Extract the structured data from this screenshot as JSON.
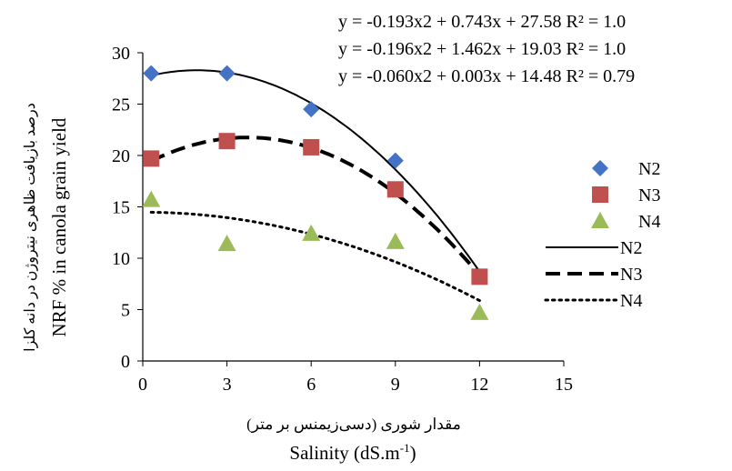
{
  "chart_data": {
    "type": "scatter",
    "xlabel_fa": "مقدار شوری (دسی‌زیمنس بر متر)",
    "xlabel_en": "Salinity (dS.m",
    "xlabel_en_sup": "-1",
    "xlabel_en_end": ")",
    "ylabel_fa": "درصد بازیافت ظاهری نیتروژن در دانه کلزا",
    "ylabel_en": "NRF % in canola grain yield",
    "xlim": [
      0,
      15
    ],
    "ylim": [
      0,
      30
    ],
    "x_ticks": [
      "0",
      "3",
      "6",
      "9",
      "12",
      "15"
    ],
    "y_ticks": [
      "0",
      "5",
      "10",
      "15",
      "20",
      "25",
      "30"
    ],
    "grid": false,
    "legend_position": "right",
    "equations": [
      "y = -0.193x2 + 0.743x + 27.58  R² = 1.0",
      "y = -0.196x2 + 1.462x + 19.03  R² = 1.0",
      "y = -0.060x2 + 0.003x + 14.48  R² = 0.79"
    ],
    "series": [
      {
        "name": "N2",
        "marker": "diamond",
        "color": "#4472C4",
        "x": [
          0.3,
          3,
          6,
          9,
          12
        ],
        "y": [
          28.0,
          28.0,
          24.5,
          19.5,
          8.2
        ]
      },
      {
        "name": "N3",
        "marker": "square",
        "color": "#C0504D",
        "x": [
          0.3,
          3,
          6,
          9,
          12
        ],
        "y": [
          19.7,
          21.4,
          20.8,
          16.7,
          8.2
        ]
      },
      {
        "name": "N4",
        "marker": "triangle",
        "color": "#9BBB59",
        "x": [
          0.3,
          3,
          6,
          9,
          12
        ],
        "y": [
          15.7,
          11.4,
          12.4,
          11.6,
          4.7
        ]
      }
    ],
    "trendlines": [
      {
        "name": "N2",
        "style": "solid",
        "color": "#000000",
        "a": -0.193,
        "b": 0.743,
        "c": 27.58,
        "x_range": [
          0.3,
          12
        ]
      },
      {
        "name": "N3",
        "style": "dashed",
        "color": "#000000",
        "a": -0.196,
        "b": 1.462,
        "c": 19.03,
        "x_range": [
          0.3,
          12
        ]
      },
      {
        "name": "N4",
        "style": "dotted",
        "color": "#000000",
        "a": -0.06,
        "b": 0.003,
        "c": 14.48,
        "x_range": [
          0.3,
          12
        ]
      }
    ]
  }
}
